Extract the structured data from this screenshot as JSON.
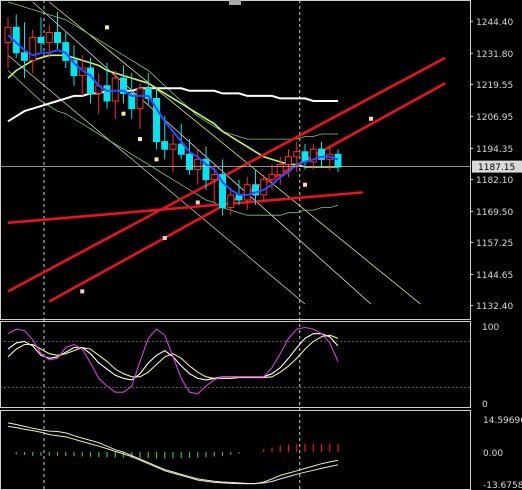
{
  "chart_data": [
    {
      "type": "candlestick",
      "title": "",
      "ylim": [
        1127.5,
        1252.0
      ],
      "y_ticks": [
        "1244.40",
        "1231.80",
        "1219.55",
        "1206.95",
        "1194.35",
        "1182.10",
        "1169.50",
        "1157.25",
        "1144.65",
        "1132.40"
      ],
      "current_price": "1187.15",
      "candles": [
        {
          "o": 1236,
          "h": 1246,
          "l": 1226,
          "c": 1242
        },
        {
          "o": 1242,
          "h": 1247,
          "l": 1230,
          "c": 1232
        },
        {
          "o": 1232,
          "h": 1244,
          "l": 1222,
          "c": 1229
        },
        {
          "o": 1229,
          "h": 1241,
          "l": 1224,
          "c": 1238
        },
        {
          "o": 1238,
          "h": 1246,
          "l": 1232,
          "c": 1236
        },
        {
          "o": 1236,
          "h": 1243,
          "l": 1230,
          "c": 1240
        },
        {
          "o": 1240,
          "h": 1248,
          "l": 1233,
          "c": 1236
        },
        {
          "o": 1236,
          "h": 1240,
          "l": 1226,
          "c": 1229
        },
        {
          "o": 1229,
          "h": 1235,
          "l": 1219,
          "c": 1223
        },
        {
          "o": 1223,
          "h": 1231,
          "l": 1215,
          "c": 1226
        },
        {
          "o": 1226,
          "h": 1230,
          "l": 1212,
          "c": 1216
        },
        {
          "o": 1216,
          "h": 1224,
          "l": 1208,
          "c": 1219
        },
        {
          "o": 1219,
          "h": 1228,
          "l": 1210,
          "c": 1213
        },
        {
          "o": 1213,
          "h": 1225,
          "l": 1206,
          "c": 1222
        },
        {
          "o": 1222,
          "h": 1227,
          "l": 1212,
          "c": 1216
        },
        {
          "o": 1216,
          "h": 1224,
          "l": 1206,
          "c": 1210
        },
        {
          "o": 1210,
          "h": 1220,
          "l": 1202,
          "c": 1218
        },
        {
          "o": 1218,
          "h": 1224,
          "l": 1211,
          "c": 1214
        },
        {
          "o": 1214,
          "h": 1218,
          "l": 1194,
          "c": 1197
        },
        {
          "o": 1197,
          "h": 1207,
          "l": 1190,
          "c": 1194
        },
        {
          "o": 1194,
          "h": 1200,
          "l": 1185,
          "c": 1196
        },
        {
          "o": 1196,
          "h": 1204,
          "l": 1190,
          "c": 1192
        },
        {
          "o": 1192,
          "h": 1198,
          "l": 1184,
          "c": 1186
        },
        {
          "o": 1186,
          "h": 1194,
          "l": 1180,
          "c": 1190
        },
        {
          "o": 1190,
          "h": 1195,
          "l": 1178,
          "c": 1182
        },
        {
          "o": 1182,
          "h": 1188,
          "l": 1173,
          "c": 1184
        },
        {
          "o": 1184,
          "h": 1190,
          "l": 1168,
          "c": 1171
        },
        {
          "o": 1171,
          "h": 1179,
          "l": 1168,
          "c": 1176
        },
        {
          "o": 1176,
          "h": 1182,
          "l": 1172,
          "c": 1174
        },
        {
          "o": 1174,
          "h": 1183,
          "l": 1170,
          "c": 1180
        },
        {
          "o": 1180,
          "h": 1186,
          "l": 1172,
          "c": 1176
        },
        {
          "o": 1176,
          "h": 1184,
          "l": 1174,
          "c": 1182
        },
        {
          "o": 1182,
          "h": 1188,
          "l": 1178,
          "c": 1184
        },
        {
          "o": 1184,
          "h": 1191,
          "l": 1180,
          "c": 1188
        },
        {
          "o": 1188,
          "h": 1194,
          "l": 1183,
          "c": 1191
        },
        {
          "o": 1191,
          "h": 1197,
          "l": 1185,
          "c": 1193
        },
        {
          "o": 1193,
          "h": 1196,
          "l": 1186,
          "c": 1189
        },
        {
          "o": 1189,
          "h": 1196,
          "l": 1186,
          "c": 1194
        },
        {
          "o": 1194,
          "h": 1197,
          "l": 1187,
          "c": 1190
        },
        {
          "o": 1190,
          "h": 1195,
          "l": 1186,
          "c": 1192
        },
        {
          "o": 1192,
          "h": 1194,
          "l": 1185,
          "c": 1187
        }
      ],
      "colors": {
        "bull": "#ff2a2a",
        "bear": "#00e5ee",
        "ma_fast": "#2a4bff",
        "ma_mid": "#c8f56a",
        "ma_slow": "#ffffff",
        "channel": "#e8141c",
        "band": "#7ec86e",
        "price_line": "#bfbfbf",
        "grid": "#d0d0d0"
      },
      "ma_fast": [
        1239,
        1236,
        1233,
        1231,
        1232,
        1232,
        1233,
        1232,
        1228,
        1225,
        1223,
        1219,
        1217,
        1217,
        1217,
        1215,
        1215,
        1215,
        1210,
        1205,
        1201,
        1197,
        1193,
        1191,
        1188,
        1186,
        1181,
        1178,
        1176,
        1176,
        1177,
        1178,
        1180,
        1183,
        1185,
        1188,
        1189,
        1190,
        1191,
        1191,
        1190
      ],
      "ma_mid": [
        1222,
        1225,
        1227,
        1229,
        1230,
        1231,
        1231,
        1231,
        1230,
        1229,
        1228,
        1227,
        1225,
        1224,
        1223,
        1222,
        1221,
        1220,
        1218,
        1216,
        1214,
        1212,
        1210,
        1208,
        1206,
        1204,
        1201,
        1199,
        1197,
        1195,
        1193,
        1191,
        1190,
        1189,
        1188,
        1188,
        1187,
        1187,
        1187,
        1187,
        1187
      ],
      "ma_slow": [
        1205,
        1207,
        1209,
        1210,
        1211,
        1212,
        1213,
        1214,
        1215,
        1215,
        1216,
        1216,
        1217,
        1217,
        1217,
        1217,
        1218,
        1218,
        1218,
        1218,
        1218,
        1218,
        1217,
        1217,
        1217,
        1217,
        1216,
        1216,
        1216,
        1215,
        1215,
        1215,
        1215,
        1214,
        1214,
        1214,
        1214,
        1213,
        1213,
        1213,
        1213
      ],
      "band_upper": [
        1252,
        1251,
        1250,
        1249,
        1248,
        1247,
        1246,
        1245,
        1243,
        1241,
        1239,
        1237,
        1235,
        1233,
        1231,
        1229,
        1227,
        1225,
        1222,
        1219,
        1216,
        1213,
        1210,
        1207,
        1205,
        1203,
        1201,
        1200,
        1199,
        1198,
        1198,
        1198,
        1198,
        1198,
        1198,
        1198,
        1199,
        1199,
        1200,
        1200,
        1200
      ],
      "band_lower": [
        1225,
        1222,
        1219,
        1216,
        1213,
        1211,
        1209,
        1208,
        1206,
        1204,
        1202,
        1200,
        1198,
        1196,
        1194,
        1192,
        1190,
        1188,
        1186,
        1184,
        1182,
        1180,
        1178,
        1176,
        1174,
        1173,
        1171,
        1170,
        1169,
        1168,
        1168,
        1168,
        1168,
        1168,
        1169,
        1169,
        1170,
        1170,
        1171,
        1171,
        1172
      ],
      "channel_lines": [
        {
          "x1": 0,
          "y1": 1138,
          "x2": 53,
          "y2": 1230
        },
        {
          "x1": 5,
          "y1": 1134,
          "x2": 53,
          "y2": 1220
        },
        {
          "x1": 0,
          "y1": 1165,
          "x2": 43,
          "y2": 1177
        }
      ],
      "diagonal_lines": [
        {
          "x1": 3,
          "y1": 1252,
          "x2": 44,
          "y2": 1133
        },
        {
          "x1": 0,
          "y1": 1231,
          "x2": 36,
          "y2": 1133
        },
        {
          "x1": 5,
          "y1": 1252,
          "x2": 50,
          "y2": 1133
        }
      ],
      "vlines_at": [
        4,
        35
      ]
    },
    {
      "type": "line",
      "title": "",
      "ylim": [
        0,
        100
      ],
      "y_ticks": [
        "100",
        "0"
      ],
      "colors": {
        "k": "#ffffff",
        "d": "#f2ee9a",
        "ext": "#d640e0",
        "level": "#888888"
      },
      "series": [
        {
          "values": [
            70,
            78,
            80,
            74,
            62,
            58,
            60,
            66,
            72,
            72,
            64,
            52,
            44,
            36,
            32,
            30,
            38,
            52,
            62,
            68,
            60,
            48,
            38,
            32,
            30,
            32,
            34,
            34,
            34,
            34,
            34,
            34,
            38,
            46,
            58,
            72,
            84,
            90,
            90,
            86,
            74
          ]
        },
        {
          "values": [
            60,
            70,
            76,
            76,
            70,
            64,
            62,
            64,
            68,
            72,
            70,
            62,
            54,
            44,
            38,
            34,
            34,
            40,
            50,
            60,
            64,
            58,
            48,
            40,
            34,
            32,
            32,
            32,
            33,
            33,
            33,
            33,
            34,
            40,
            48,
            58,
            70,
            80,
            86,
            88,
            84
          ]
        },
        {
          "values": [
            90,
            96,
            94,
            82,
            64,
            56,
            58,
            72,
            76,
            70,
            52,
            32,
            22,
            14,
            14,
            22,
            54,
            84,
            96,
            88,
            60,
            32,
            14,
            12,
            22,
            30,
            34,
            34,
            34,
            34,
            34,
            34,
            46,
            64,
            84,
            96,
            98,
            96,
            90,
            78,
            54
          ]
        }
      ]
    },
    {
      "type": "bar",
      "title": "",
      "ylim": [
        -13.6758,
        14.59696
      ],
      "y_ticks": [
        "14.59696",
        "0.00",
        "-13.6758"
      ],
      "colors": {
        "pos": "#e8141c",
        "neg": "#3fbf3f",
        "signal": "#e6e6e6",
        "main": "#f2ee9a"
      },
      "values": [
        0,
        -1,
        -1.3,
        -1.6,
        -1.6,
        -1.6,
        -1.6,
        -1.7,
        -1.8,
        -1.9,
        -2,
        -2.1,
        -2.2,
        -2.3,
        -2.4,
        -2.5,
        -2.6,
        -2.6,
        -2.7,
        -2.7,
        -2.7,
        -2.6,
        -2.5,
        -2.4,
        -2.2,
        -1.9,
        -1.6,
        -1.2,
        -0.6,
        0,
        0,
        1.2,
        2,
        2.8,
        3.2,
        3.4,
        3.6,
        3.6,
        3.6,
        3.6,
        3.6
      ],
      "signal": [
        12.5,
        11.8,
        11,
        10.2,
        9.5,
        9,
        8.8,
        8.2,
        7,
        6,
        5,
        4,
        2.5,
        1,
        0,
        -1.5,
        -3,
        -4.5,
        -6,
        -7.5,
        -8.5,
        -9.5,
        -10.5,
        -11.5,
        -12,
        -12.5,
        -12.8,
        -13,
        -13.2,
        -13.4,
        -13.5,
        -13.2,
        -12.6,
        -11.5,
        -10.5,
        -9.5,
        -8.6,
        -7.8,
        -7,
        -6.2,
        -5.5
      ],
      "main": [
        11,
        10.5,
        9.8,
        9.2,
        8.5,
        7.5,
        7,
        6.5,
        5.5,
        4.5,
        3.5,
        2.5,
        1.5,
        0.3,
        -0.8,
        -2,
        -3.5,
        -5,
        -6.5,
        -8,
        -9,
        -10,
        -11,
        -12,
        -12.5,
        -13,
        -13.2,
        -13.4,
        -13.5,
        -13.6,
        -13.5,
        -12.8,
        -11.5,
        -10,
        -9,
        -8,
        -7,
        -6,
        -5,
        -4.2,
        -3.5
      ]
    }
  ]
}
